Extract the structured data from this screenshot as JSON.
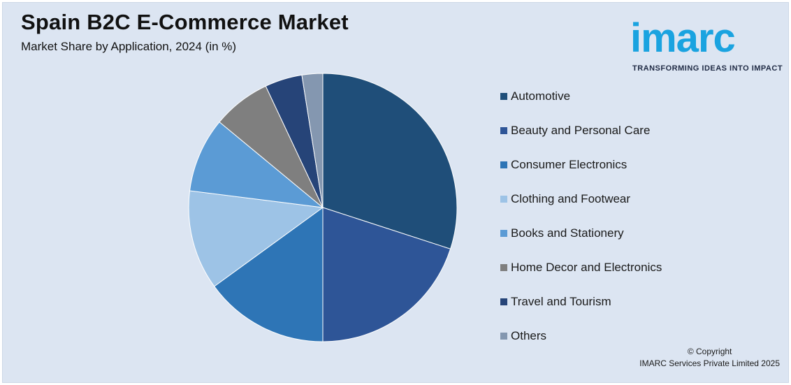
{
  "header": {
    "title": "Spain B2C E-Commerce Market",
    "subtitle": "Market Share by Application, 2024 (in %)"
  },
  "logo": {
    "word": "imarc",
    "tagline": "TRANSFORMING IDEAS INTO IMPACT"
  },
  "footer": {
    "copyright_line1": "© Copyright",
    "copyright_line2": "IMARC Services Private Limited 2025"
  },
  "chart_data": {
    "type": "pie",
    "title": "Spain B2C E-Commerce Market",
    "subtitle": "Market Share by Application, 2024 (in %)",
    "legend_position": "right",
    "start_angle_deg": 0,
    "direction": "clockwise",
    "slices": [
      {
        "label": "Automotive",
        "value": 30,
        "color": "#1f4e79"
      },
      {
        "label": "Beauty and Personal Care",
        "value": 20,
        "color": "#2e5597"
      },
      {
        "label": "Consumer Electronics",
        "value": 15,
        "color": "#2e75b6"
      },
      {
        "label": "Clothing and Footwear",
        "value": 12,
        "color": "#9dc3e6"
      },
      {
        "label": "Books and Stationery",
        "value": 9,
        "color": "#5b9bd5"
      },
      {
        "label": "Home Decor and Electronics",
        "value": 7,
        "color": "#7f7f7f"
      },
      {
        "label": "Travel and Tourism",
        "value": 4.5,
        "color": "#264478"
      },
      {
        "label": "Others",
        "value": 2.5,
        "color": "#8497b0"
      }
    ]
  }
}
